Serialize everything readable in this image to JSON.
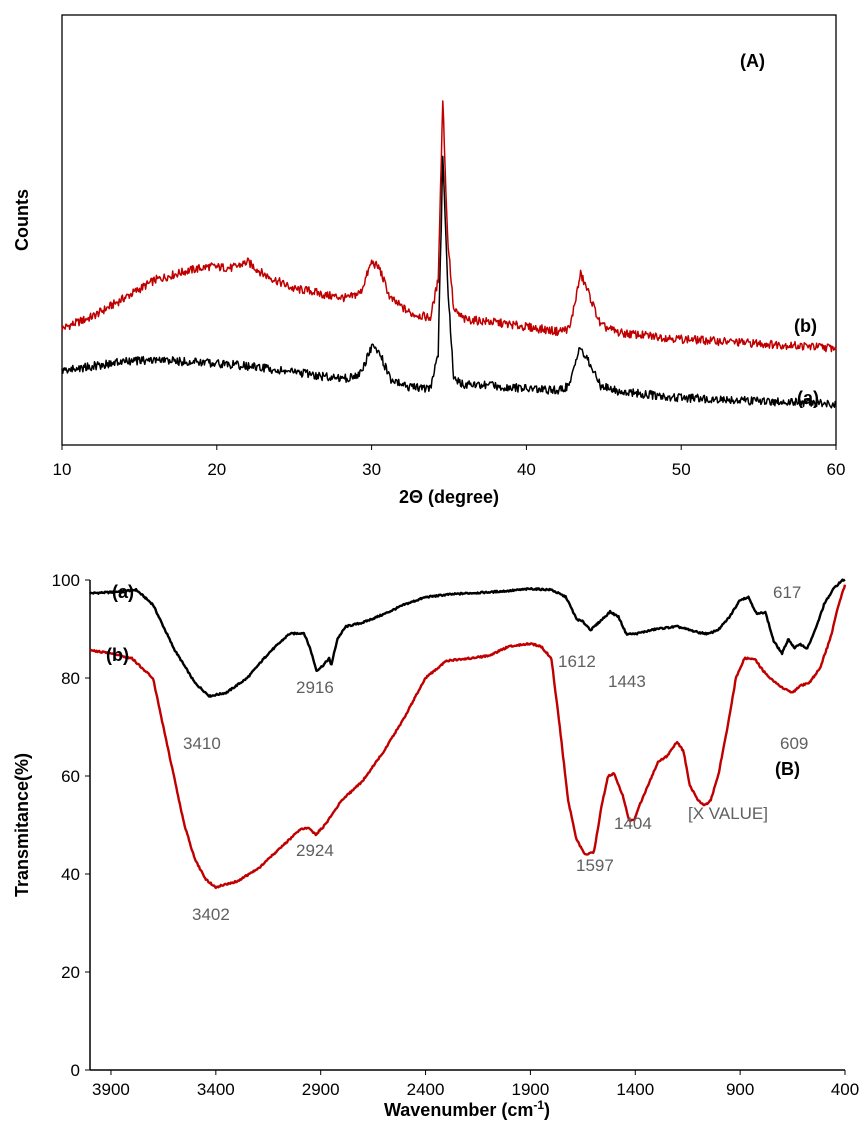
{
  "chart_data": [
    {
      "panel_label": "(A)",
      "type": "line",
      "xlabel": "2Θ (degree)",
      "ylabel": "Counts",
      "xlim": [
        10,
        60
      ],
      "xticks": [
        "10",
        "20",
        "30",
        "40",
        "50",
        "60"
      ],
      "y_tick_labels_shown": false,
      "grid": false,
      "series": [
        {
          "name": "(b)",
          "color": "#c00000",
          "points": [
            [
              10,
              0.24
            ],
            [
              12,
              0.28
            ],
            [
              14,
              0.34
            ],
            [
              16,
              0.4
            ],
            [
              18,
              0.43
            ],
            [
              19.5,
              0.445
            ],
            [
              21,
              0.44
            ],
            [
              22,
              0.46
            ],
            [
              23,
              0.42
            ],
            [
              25,
              0.37
            ],
            [
              26,
              0.365
            ],
            [
              27,
              0.35
            ],
            [
              28.5,
              0.34
            ],
            [
              29.3,
              0.36
            ],
            [
              30,
              0.46
            ],
            [
              30.5,
              0.44
            ],
            [
              31.2,
              0.34
            ],
            [
              32.5,
              0.29
            ],
            [
              33.8,
              0.275
            ],
            [
              34.3,
              0.4
            ],
            [
              34.6,
              1.0
            ],
            [
              34.9,
              0.55
            ],
            [
              35.3,
              0.3
            ],
            [
              36,
              0.27
            ],
            [
              38,
              0.26
            ],
            [
              40,
              0.245
            ],
            [
              42,
              0.23
            ],
            [
              42.8,
              0.24
            ],
            [
              43.5,
              0.42
            ],
            [
              44,
              0.36
            ],
            [
              44.8,
              0.25
            ],
            [
              46,
              0.225
            ],
            [
              50,
              0.205
            ],
            [
              55,
              0.19
            ],
            [
              60,
              0.175
            ]
          ]
        },
        {
          "name": "(a)",
          "color": "#000000",
          "points": [
            [
              10,
              0.1
            ],
            [
              12,
              0.115
            ],
            [
              14,
              0.13
            ],
            [
              16,
              0.135
            ],
            [
              18,
              0.13
            ],
            [
              20,
              0.125
            ],
            [
              22,
              0.115
            ],
            [
              25,
              0.095
            ],
            [
              27,
              0.08
            ],
            [
              28.5,
              0.075
            ],
            [
              29.3,
              0.09
            ],
            [
              30,
              0.18
            ],
            [
              30.6,
              0.15
            ],
            [
              31.2,
              0.07
            ],
            [
              32.5,
              0.045
            ],
            [
              33.8,
              0.04
            ],
            [
              34.3,
              0.16
            ],
            [
              34.6,
              0.8
            ],
            [
              34.9,
              0.4
            ],
            [
              35.3,
              0.07
            ],
            [
              36,
              0.055
            ],
            [
              38,
              0.05
            ],
            [
              40,
              0.04
            ],
            [
              42,
              0.035
            ],
            [
              42.8,
              0.05
            ],
            [
              43.4,
              0.18
            ],
            [
              44,
              0.13
            ],
            [
              44.8,
              0.05
            ],
            [
              46,
              0.03
            ],
            [
              50,
              0.01
            ],
            [
              55,
              0.0
            ],
            [
              60,
              -0.01
            ]
          ]
        }
      ]
    },
    {
      "panel_label": "(B)",
      "type": "line",
      "xlabel": "Wavenumber (cm-1)",
      "xlabel_parts": [
        "Wavenumber (cm",
        "-1",
        ")"
      ],
      "ylabel": "Transmitance(%)",
      "xlim": [
        4000,
        400
      ],
      "x_reversed": true,
      "ylim": [
        0,
        100
      ],
      "xticks": [
        3900,
        3400,
        2900,
        2400,
        1900,
        1400,
        900,
        400
      ],
      "yticks": [
        0,
        20,
        40,
        60,
        80,
        100
      ],
      "grid": false,
      "series": [
        {
          "name": "(a)",
          "color": "#000000",
          "points": [
            [
              4000,
              97.3
            ],
            [
              3900,
              97.5
            ],
            [
              3780,
              98
            ],
            [
              3700,
              95
            ],
            [
              3600,
              86
            ],
            [
              3500,
              79
            ],
            [
              3430,
              76.3
            ],
            [
              3350,
              77
            ],
            [
              3250,
              80
            ],
            [
              3150,
              85
            ],
            [
              3050,
              89
            ],
            [
              2980,
              89.2
            ],
            [
              2950,
              86
            ],
            [
              2920,
              81.5
            ],
            [
              2890,
              82.5
            ],
            [
              2860,
              84
            ],
            [
              2850,
              82.5
            ],
            [
              2820,
              88
            ],
            [
              2780,
              90.5
            ],
            [
              2700,
              91.3
            ],
            [
              2600,
              93
            ],
            [
              2500,
              95
            ],
            [
              2400,
              96.5
            ],
            [
              2300,
              97
            ],
            [
              2200,
              97.3
            ],
            [
              2100,
              97.5
            ],
            [
              2000,
              97.8
            ],
            [
              1900,
              98.2
            ],
            [
              1800,
              98
            ],
            [
              1730,
              96.5
            ],
            [
              1680,
              92
            ],
            [
              1650,
              91.5
            ],
            [
              1612,
              89.8
            ],
            [
              1570,
              91.5
            ],
            [
              1520,
              93.5
            ],
            [
              1480,
              92.5
            ],
            [
              1443,
              89
            ],
            [
              1400,
              89
            ],
            [
              1300,
              90
            ],
            [
              1200,
              90.5
            ],
            [
              1100,
              89.3
            ],
            [
              1050,
              89
            ],
            [
              1000,
              90
            ],
            [
              950,
              92.5
            ],
            [
              900,
              96
            ],
            [
              860,
              96.5
            ],
            [
              820,
              93
            ],
            [
              780,
              93.5
            ],
            [
              740,
              87.5
            ],
            [
              700,
              85
            ],
            [
              670,
              88
            ],
            [
              640,
              86
            ],
            [
              617,
              87
            ],
            [
              580,
              86
            ],
            [
              540,
              90
            ],
            [
              500,
              95
            ],
            [
              450,
              98.5
            ],
            [
              410,
              100
            ]
          ]
        },
        {
          "name": "(b)",
          "color": "#c00000",
          "points": [
            [
              4000,
              85.7
            ],
            [
              3900,
              85
            ],
            [
              3800,
              84
            ],
            [
              3700,
              80
            ],
            [
              3650,
              70
            ],
            [
              3600,
              60
            ],
            [
              3550,
              50
            ],
            [
              3500,
              43
            ],
            [
              3450,
              39
            ],
            [
              3402,
              37.3
            ],
            [
              3300,
              38.5
            ],
            [
              3200,
              41
            ],
            [
              3100,
              45
            ],
            [
              3000,
              49
            ],
            [
              2960,
              49.5
            ],
            [
              2924,
              48
            ],
            [
              2880,
              50
            ],
            [
              2800,
              55
            ],
            [
              2700,
              59
            ],
            [
              2600,
              65
            ],
            [
              2500,
              72
            ],
            [
              2400,
              80
            ],
            [
              2300,
              83.5
            ],
            [
              2200,
              84
            ],
            [
              2100,
              84.5
            ],
            [
              2000,
              86.5
            ],
            [
              1900,
              87
            ],
            [
              1850,
              86.5
            ],
            [
              1800,
              84
            ],
            [
              1760,
              70
            ],
            [
              1720,
              55
            ],
            [
              1680,
              47
            ],
            [
              1640,
              44
            ],
            [
              1597,
              44.5
            ],
            [
              1560,
              54
            ],
            [
              1530,
              60
            ],
            [
              1500,
              60.5
            ],
            [
              1460,
              56
            ],
            [
              1430,
              51
            ],
            [
              1404,
              51
            ],
            [
              1380,
              54
            ],
            [
              1330,
              59
            ],
            [
              1290,
              63
            ],
            [
              1250,
              64
            ],
            [
              1200,
              67
            ],
            [
              1170,
              65
            ],
            [
              1140,
              58
            ],
            [
              1100,
              55
            ],
            [
              1070,
              54
            ],
            [
              1040,
              55
            ],
            [
              1000,
              61
            ],
            [
              960,
              70
            ],
            [
              920,
              80
            ],
            [
              880,
              84
            ],
            [
              830,
              84
            ],
            [
              800,
              82
            ],
            [
              760,
              80
            ],
            [
              700,
              78
            ],
            [
              650,
              77
            ],
            [
              609,
              78.5
            ],
            [
              570,
              79
            ],
            [
              520,
              82
            ],
            [
              470,
              88
            ],
            [
              430,
              95
            ],
            [
              400,
              99
            ]
          ]
        }
      ],
      "peak_labels": [
        "3410",
        "2916",
        "1612",
        "1443",
        "617",
        "3402",
        "2924",
        "1597",
        "1404",
        "[X VALUE]",
        "609"
      ]
    }
  ]
}
